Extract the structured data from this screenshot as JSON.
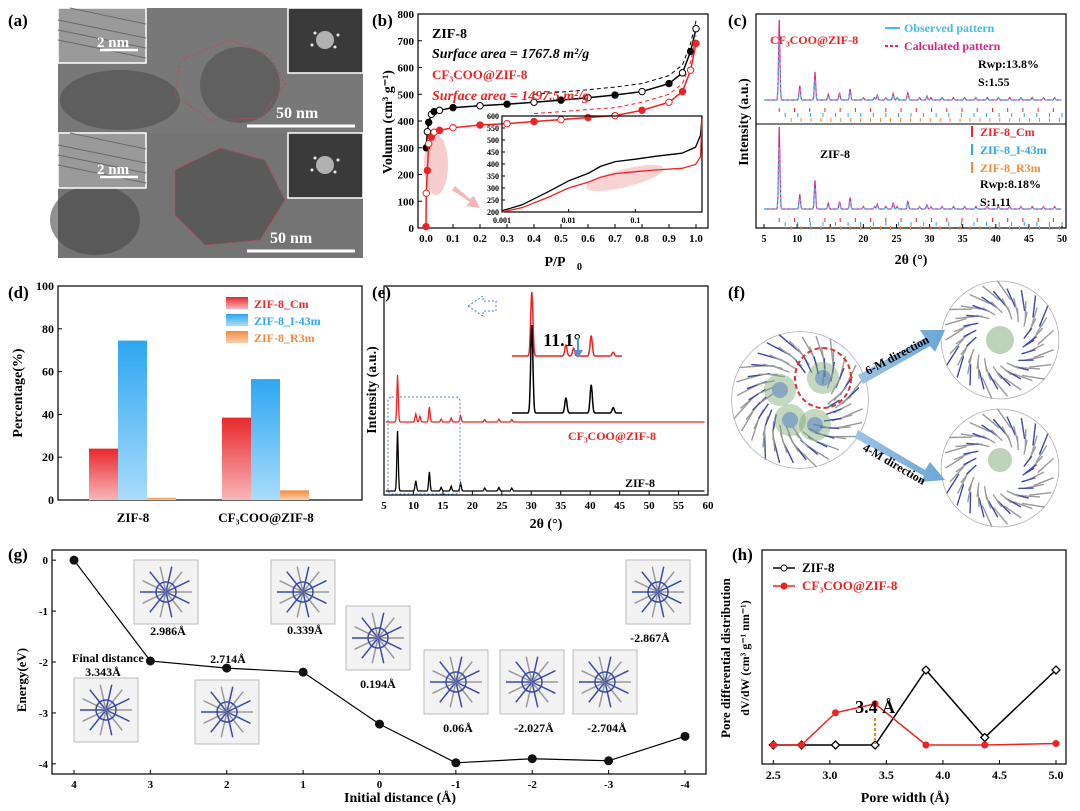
{
  "panels": {
    "a": {
      "label": "(a)",
      "top": {
        "inset_scale": "2 nm",
        "scale": "50 nm"
      },
      "bottom": {
        "inset_scale": "2 nm",
        "scale": "50 nm"
      }
    },
    "f": {
      "label": "(f)",
      "arrow_top": "6-M direction",
      "arrow_bottom": "4-M direction"
    },
    "g_energy": {
      "final_distance_label": "Final distance",
      "structure_labels": [
        "3.343Å",
        "2.986Å",
        "2.714Å",
        "0.339Å",
        "0.194Å",
        "0.06Å",
        "-2.027Å",
        "-2.704Å",
        "-2.867Å"
      ]
    }
  },
  "chart_data": [
    {
      "id": "b",
      "panel_label": "(b)",
      "type": "line",
      "xlabel": "P/P",
      "xlabel_sub": "0",
      "ylabel": "Volumn (cm³ g⁻¹)",
      "xlim": [
        0.0,
        1.0
      ],
      "ylim": [
        0,
        800
      ],
      "xticks": [
        "0.0",
        "0.1",
        "0.2",
        "0.3",
        "0.4",
        "0.5",
        "0.6",
        "0.7",
        "0.8",
        "0.9",
        "1.0"
      ],
      "yticks": [
        "0",
        "100",
        "200",
        "300",
        "400",
        "500",
        "600",
        "700",
        "800"
      ],
      "annotations": [
        "ZIF-8",
        "Surface area = 1767.8 m²/g",
        "CF₃COO@ZIF-8",
        "Surface area = 1497.5 m²/g"
      ],
      "series": [
        {
          "name": "ZIF-8",
          "color": "#000000",
          "x": [
            0.001,
            0.005,
            0.01,
            0.02,
            0.03,
            0.05,
            0.1,
            0.2,
            0.3,
            0.4,
            0.5,
            0.6,
            0.7,
            0.8,
            0.9,
            0.95,
            0.98,
            1.0
          ],
          "y": [
            300,
            360,
            395,
            425,
            435,
            440,
            450,
            457,
            463,
            470,
            478,
            487,
            497,
            510,
            540,
            580,
            660,
            745
          ]
        },
        {
          "name": "CF₃COO@ZIF-8",
          "color": "#ee2222",
          "x": [
            0.0,
            0.001,
            0.005,
            0.01,
            0.02,
            0.03,
            0.05,
            0.1,
            0.2,
            0.3,
            0.4,
            0.5,
            0.6,
            0.7,
            0.8,
            0.9,
            0.95,
            0.98,
            1.0
          ],
          "y": [
            5,
            130,
            215,
            315,
            340,
            358,
            365,
            375,
            385,
            390,
            398,
            405,
            413,
            420,
            440,
            470,
            510,
            590,
            690
          ]
        }
      ],
      "inset": {
        "xticks": [
          "0.001",
          "0.01",
          "0.1"
        ],
        "yticks": [
          "200",
          "250",
          "300",
          "350",
          "400",
          "450",
          "500",
          "550",
          "600"
        ],
        "xlim": [
          0.001,
          1.0
        ],
        "ylim": [
          200,
          600
        ],
        "xscale": "log",
        "series": [
          {
            "name": "ZIF-8",
            "x": [
              0.001,
              0.002,
              0.005,
              0.01,
              0.02,
              0.03,
              0.05,
              0.1,
              0.2,
              0.5,
              0.8,
              0.95,
              1.0
            ],
            "y": [
              205,
              230,
              285,
              330,
              362,
              390,
              410,
              420,
              432,
              445,
              470,
              520,
              595
            ]
          },
          {
            "name": "CF₃COO@ZIF-8",
            "x": [
              0.001,
              0.002,
              0.005,
              0.01,
              0.02,
              0.03,
              0.05,
              0.1,
              0.2,
              0.5,
              0.8,
              0.95,
              1.0
            ],
            "y": [
              200,
              218,
              262,
              300,
              325,
              345,
              360,
              368,
              375,
              382,
              398,
              430,
              590
            ]
          }
        ]
      }
    },
    {
      "id": "c",
      "panel_label": "(c)",
      "type": "line",
      "xlabel": "2θ (°)",
      "ylabel": "Intensity (a.u.)",
      "xlim": [
        5,
        50
      ],
      "xticks": [
        "5",
        "10",
        "15",
        "20",
        "25",
        "30",
        "35",
        "40",
        "45",
        "50"
      ],
      "top": {
        "title": "CF₃COO@ZIF-8",
        "legend": [
          "Observed pattern",
          "Calculated pattern"
        ],
        "stats": [
          "Rwp:13.8%",
          "S:1.55"
        ]
      },
      "bottom": {
        "title": "ZIF-8",
        "legend": [
          "ZIF-8_Cm",
          "ZIF-8_I-43m",
          "ZIF-8_R3m"
        ],
        "stats": [
          "Rwp:8.18%",
          "S:1.11"
        ]
      },
      "peaks_x": [
        7.3,
        10.4,
        12.7,
        14.7,
        16.4,
        18.0,
        22.1,
        24.5,
        26.7,
        29.6
      ],
      "peaks_rel": [
        1.0,
        0.18,
        0.35,
        0.07,
        0.09,
        0.14,
        0.06,
        0.08,
        0.07,
        0.05
      ]
    },
    {
      "id": "d",
      "panel_label": "(d)",
      "type": "bar",
      "categories": [
        "ZIF-8",
        "CF₃COO@ZIF-8"
      ],
      "ylabel": "Percentage(%)",
      "ylim": [
        0,
        100
      ],
      "yticks": [
        "0",
        "20",
        "40",
        "60",
        "80",
        "100"
      ],
      "series": [
        {
          "name": "ZIF-8_Cm",
          "color": "#e8282b",
          "values": [
            24,
            38.5
          ]
        },
        {
          "name": "ZIF-8_I-43m",
          "color": "#2ea6f2",
          "values": [
            74.5,
            56.5
          ]
        },
        {
          "name": "ZIF-8_R3m",
          "color": "#f08a3c",
          "values": [
            1,
            4.5
          ]
        }
      ]
    },
    {
      "id": "e",
      "panel_label": "(e)",
      "type": "line",
      "xlabel": "2θ (°)",
      "ylabel": "Intensity (a.u.)",
      "xlim": [
        5,
        60
      ],
      "xticks": [
        "5",
        "10",
        "15",
        "20",
        "25",
        "30",
        "35",
        "40",
        "45",
        "50",
        "55",
        "60"
      ],
      "series": [
        {
          "name": "CF₃COO@ZIF-8",
          "color": "#ee2222"
        },
        {
          "name": "ZIF-8",
          "color": "#000000"
        }
      ],
      "peaks_x": [
        7.3,
        10.4,
        11.1,
        12.7,
        14.7,
        16.4,
        18.0,
        22.1,
        24.5,
        26.7
      ],
      "peaks_rel": [
        1.0,
        0.17,
        0.12,
        0.32,
        0.06,
        0.08,
        0.13,
        0.05,
        0.06,
        0.05
      ],
      "annotation": "11.1°"
    },
    {
      "id": "g",
      "panel_label": "(g)",
      "type": "line",
      "xlabel": "Initial distance (Å)",
      "ylabel": "Energy(eV)",
      "xlim": [
        4,
        -4
      ],
      "ylim": [
        -4.2,
        0.2
      ],
      "xticks": [
        "4",
        "3",
        "2",
        "1",
        "0",
        "-1",
        "-2",
        "-3",
        "-4"
      ],
      "yticks": [
        "0",
        "-1",
        "-2",
        "-3",
        "-4"
      ],
      "x": [
        4,
        3,
        2,
        1,
        0,
        -1,
        -2,
        -3,
        -4
      ],
      "y": [
        0,
        -1.98,
        -2.12,
        -2.2,
        -3.22,
        -3.98,
        -3.9,
        -3.94,
        -3.46
      ]
    },
    {
      "id": "h",
      "panel_label": "(h)",
      "type": "line",
      "xlabel": "Pore width (Å)",
      "ylabel": "Pore differential distribution",
      "ylabel2": "dV/dW (cm³ g⁻¹ nm⁻¹)",
      "xlim": [
        2.4,
        5.0
      ],
      "xticks": [
        "2.5",
        "3.0",
        "3.5",
        "4.0",
        "4.5",
        "5.0"
      ],
      "annotation": "3.4 Å",
      "series": [
        {
          "name": "ZIF-8",
          "color": "#000000",
          "x": [
            2.5,
            2.75,
            3.05,
            3.4,
            3.85,
            4.37,
            5.0
          ],
          "y": [
            0.0,
            0.0,
            0.0,
            0.0,
            1.0,
            0.1,
            1.0
          ]
        },
        {
          "name": "CF₃COO@ZIF-8",
          "color": "#ee2222",
          "x": [
            2.5,
            2.75,
            3.05,
            3.4,
            3.85,
            4.37,
            5.0
          ],
          "y": [
            0.0,
            0.0,
            0.43,
            0.55,
            0.0,
            0.0,
            0.02
          ]
        }
      ]
    }
  ]
}
